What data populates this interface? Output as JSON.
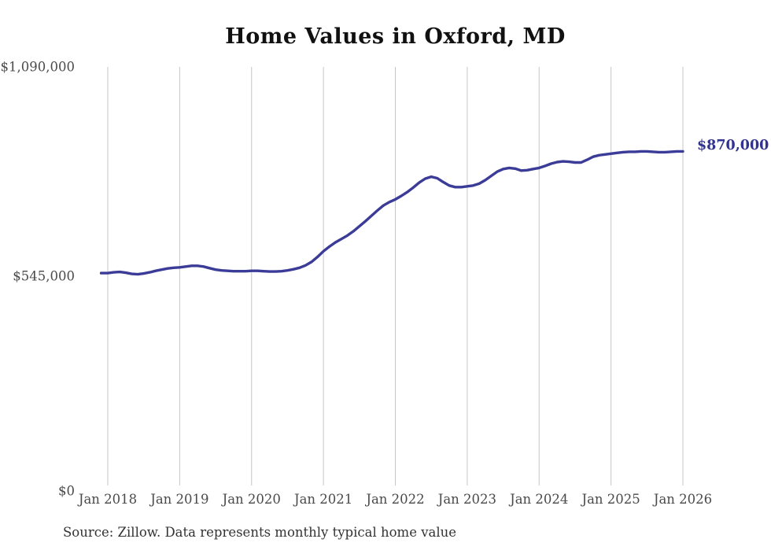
{
  "page": {
    "title": "Home Values in Oxford, MD",
    "source_note": "Source: Zillow. Data represents monthly typical home value",
    "end_value_label": "$870,000"
  },
  "colors": {
    "background": "#ffffff",
    "title": "#111111",
    "axis_text": "#4a4a4a",
    "source_text": "#333333",
    "grid": "#c6c6c6",
    "line": "#3b3b98",
    "end_label": "#32328f"
  },
  "chart_data": {
    "type": "line",
    "title": "Home Values in Oxford, MD",
    "xlabel": "",
    "ylabel": "",
    "ylim": [
      0,
      1090000
    ],
    "grid": "vertical-only",
    "legend": "none",
    "x_tick_labels": [
      "Jan 2018",
      "Jan 2019",
      "Jan 2020",
      "Jan 2021",
      "Jan 2022",
      "Jan 2023",
      "Jan 2024",
      "Jan 2025",
      "Jan 2026"
    ],
    "y_ticks": [
      {
        "label": "$0",
        "value": 0
      },
      {
        "label": "$545,000",
        "value": 545000
      },
      {
        "label": "$1,090,000",
        "value": 1090000
      }
    ],
    "x_months": {
      "start": "2018-01",
      "end": "2026-01",
      "step": "monthly"
    },
    "series": [
      {
        "name": "Typical home value",
        "values": [
          553000,
          555000,
          556000,
          554000,
          551000,
          550000,
          552000,
          555000,
          559000,
          562000,
          565000,
          567000,
          568000,
          570000,
          572000,
          572000,
          570000,
          566000,
          562000,
          560000,
          559000,
          558000,
          558000,
          558000,
          559000,
          559000,
          558000,
          557000,
          557000,
          558000,
          560000,
          563000,
          567000,
          573000,
          582000,
          595000,
          610000,
          622000,
          633000,
          642000,
          651000,
          662000,
          675000,
          688000,
          702000,
          716000,
          729000,
          738000,
          745000,
          754000,
          764000,
          776000,
          789000,
          799000,
          804000,
          800000,
          790000,
          781000,
          777000,
          777000,
          779000,
          781000,
          786000,
          795000,
          806000,
          817000,
          824000,
          827000,
          825000,
          820000,
          821000,
          824000,
          827000,
          832000,
          838000,
          842000,
          844000,
          843000,
          841000,
          841000,
          848000,
          856000,
          860000,
          862000,
          864000,
          866000,
          868000,
          869000,
          869000,
          870000,
          870000,
          869000,
          868000,
          868000,
          869000,
          870000,
          870000
        ]
      }
    ],
    "end_annotation": {
      "text": "$870,000",
      "value": 870000
    }
  }
}
